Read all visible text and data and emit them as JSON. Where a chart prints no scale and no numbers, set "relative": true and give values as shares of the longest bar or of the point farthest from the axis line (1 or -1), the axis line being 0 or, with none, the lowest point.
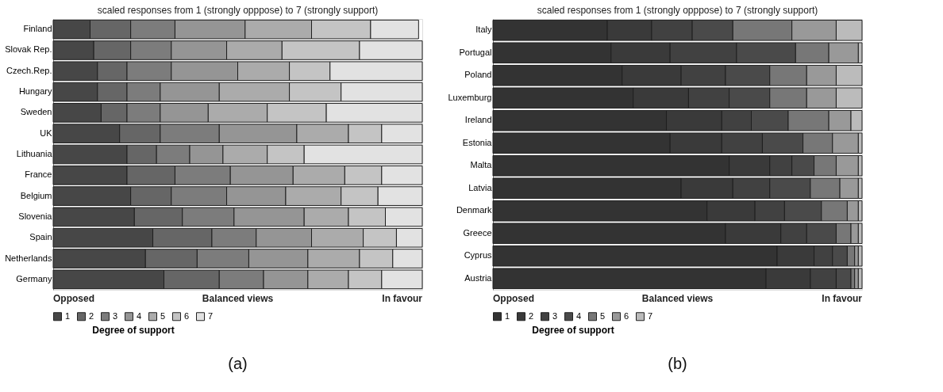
{
  "chart_data": [
    {
      "type": "bar",
      "orientation": "horizontal",
      "stacked": true,
      "relative": true,
      "title": "scaled responses from 1 (strongly opppose) to 7 (strongly support)",
      "legend": "bottom",
      "legend_title": "Degree of support",
      "categories": [
        "Finland",
        "Slovak Rep.",
        "Czech.Rep.",
        "Hungary",
        "Sweden",
        "UK",
        "Lithuania",
        "France",
        "Belgium",
        "Slovenia",
        "Spain",
        "Netherlands",
        "Germany"
      ],
      "series": [
        {
          "name": "1",
          "color": "#474747",
          "values": [
            0.1,
            0.11,
            0.12,
            0.12,
            0.13,
            0.18,
            0.2,
            0.2,
            0.21,
            0.22,
            0.27,
            0.25,
            0.3
          ]
        },
        {
          "name": "2",
          "color": "#666666",
          "values": [
            0.11,
            0.1,
            0.08,
            0.08,
            0.07,
            0.11,
            0.08,
            0.13,
            0.11,
            0.13,
            0.16,
            0.14,
            0.15
          ]
        },
        {
          "name": "3",
          "color": "#7c7c7c",
          "values": [
            0.12,
            0.11,
            0.12,
            0.09,
            0.09,
            0.16,
            0.09,
            0.15,
            0.15,
            0.14,
            0.12,
            0.14,
            0.12
          ]
        },
        {
          "name": "4",
          "color": "#959595",
          "values": [
            0.19,
            0.15,
            0.18,
            0.16,
            0.13,
            0.21,
            0.09,
            0.17,
            0.16,
            0.19,
            0.15,
            0.16,
            0.12
          ]
        },
        {
          "name": "5",
          "color": "#ababab",
          "values": [
            0.18,
            0.15,
            0.14,
            0.19,
            0.16,
            0.14,
            0.12,
            0.14,
            0.15,
            0.12,
            0.14,
            0.14,
            0.11
          ]
        },
        {
          "name": "6",
          "color": "#c4c4c4",
          "values": [
            0.16,
            0.21,
            0.11,
            0.14,
            0.16,
            0.09,
            0.1,
            0.1,
            0.1,
            0.1,
            0.09,
            0.09,
            0.09
          ]
        },
        {
          "name": "7",
          "color": "#e2e2e2",
          "values": [
            0.13,
            0.17,
            0.25,
            0.22,
            0.26,
            0.11,
            0.32,
            0.11,
            0.12,
            0.1,
            0.07,
            0.08,
            0.11
          ]
        }
      ],
      "annotations": [
        "Opposed",
        "Balanced  views",
        "In favour",
        "(a)"
      ]
    },
    {
      "type": "bar",
      "orientation": "horizontal",
      "stacked": true,
      "relative": true,
      "title": "scaled responses from 1 (strongly opppose) to 7 (strongly support)",
      "legend": "bottom",
      "legend_title": "Degree of support",
      "categories": [
        "Italy",
        "Portugal",
        "Poland",
        "Luxemburg",
        "Ireland",
        "Estonia",
        "Malta",
        "Latvia",
        "Denmark",
        "Greece",
        "Cyprus",
        "Austria"
      ],
      "series": [
        {
          "name": "1",
          "color": "#333333",
          "values": [
            0.31,
            0.32,
            0.35,
            0.38,
            0.47,
            0.48,
            0.64,
            0.51,
            0.58,
            0.63,
            0.77,
            0.74
          ]
        },
        {
          "name": "2",
          "color": "#3a3a3a",
          "values": [
            0.12,
            0.16,
            0.16,
            0.15,
            0.15,
            0.14,
            0.11,
            0.14,
            0.13,
            0.15,
            0.1,
            0.12
          ]
        },
        {
          "name": "3",
          "color": "#414141",
          "values": [
            0.11,
            0.18,
            0.12,
            0.11,
            0.08,
            0.11,
            0.06,
            0.1,
            0.08,
            0.07,
            0.05,
            0.07
          ]
        },
        {
          "name": "4",
          "color": "#4a4a4a",
          "values": [
            0.11,
            0.16,
            0.12,
            0.11,
            0.1,
            0.11,
            0.06,
            0.11,
            0.1,
            0.08,
            0.04,
            0.04
          ]
        },
        {
          "name": "5",
          "color": "#777777",
          "values": [
            0.16,
            0.09,
            0.1,
            0.1,
            0.11,
            0.08,
            0.06,
            0.08,
            0.07,
            0.04,
            0.02,
            0.01
          ]
        },
        {
          "name": "6",
          "color": "#999999",
          "values": [
            0.12,
            0.08,
            0.08,
            0.08,
            0.06,
            0.07,
            0.06,
            0.05,
            0.03,
            0.02,
            0.01,
            0.01
          ]
        },
        {
          "name": "7",
          "color": "#bbbbbb",
          "values": [
            0.07,
            0.01,
            0.07,
            0.07,
            0.03,
            0.01,
            0.01,
            0.01,
            0.01,
            0.01,
            0.01,
            0.01
          ]
        }
      ],
      "annotations": [
        "Opposed",
        "Balanced  views",
        "In favour",
        "(b)"
      ]
    }
  ]
}
